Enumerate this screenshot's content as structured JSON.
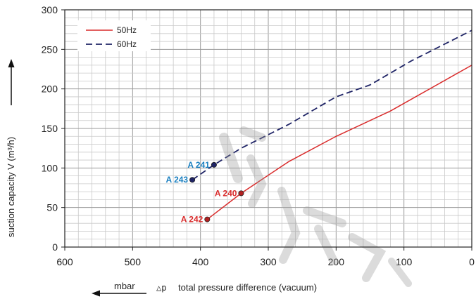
{
  "chart_data": {
    "type": "line",
    "xlabel": "total pressure difference (vacuum)",
    "xlabel_prefix": "△p",
    "xunit": "mbar",
    "ylabel": "suction capacity V (m³/h)",
    "xlim": [
      600,
      0
    ],
    "ylim": [
      0,
      300
    ],
    "x_ticks": [
      600,
      500,
      400,
      300,
      200,
      100,
      0
    ],
    "y_ticks": [
      0,
      50,
      100,
      150,
      200,
      250,
      300
    ],
    "grid": true,
    "legend_position": "top-left",
    "series": [
      {
        "name": "50Hz",
        "style": "solid",
        "color": "#d92b2b",
        "x": [
          390,
          340,
          270,
          200,
          120,
          0
        ],
        "y": [
          35,
          68,
          108,
          140,
          172,
          230
        ]
      },
      {
        "name": "60Hz",
        "style": "dashed",
        "color": "#1f2466",
        "x": [
          412,
          380,
          340,
          270,
          200,
          150,
          90,
          0
        ],
        "y": [
          85,
          104,
          125,
          155,
          190,
          205,
          235,
          274
        ]
      }
    ],
    "annotations": [
      {
        "text": "A 241",
        "x": 380,
        "y": 104,
        "color": "#1a7fc0",
        "dot": "#1f2466"
      },
      {
        "text": "A 243",
        "x": 412,
        "y": 85,
        "color": "#1a7fc0",
        "dot": "#1f2466"
      },
      {
        "text": "A 240",
        "x": 340,
        "y": 68,
        "color": "#d92b2b",
        "dot": "#b32020"
      },
      {
        "text": "A 242",
        "x": 390,
        "y": 35,
        "color": "#d92b2b",
        "dot": "#b32020"
      }
    ]
  }
}
